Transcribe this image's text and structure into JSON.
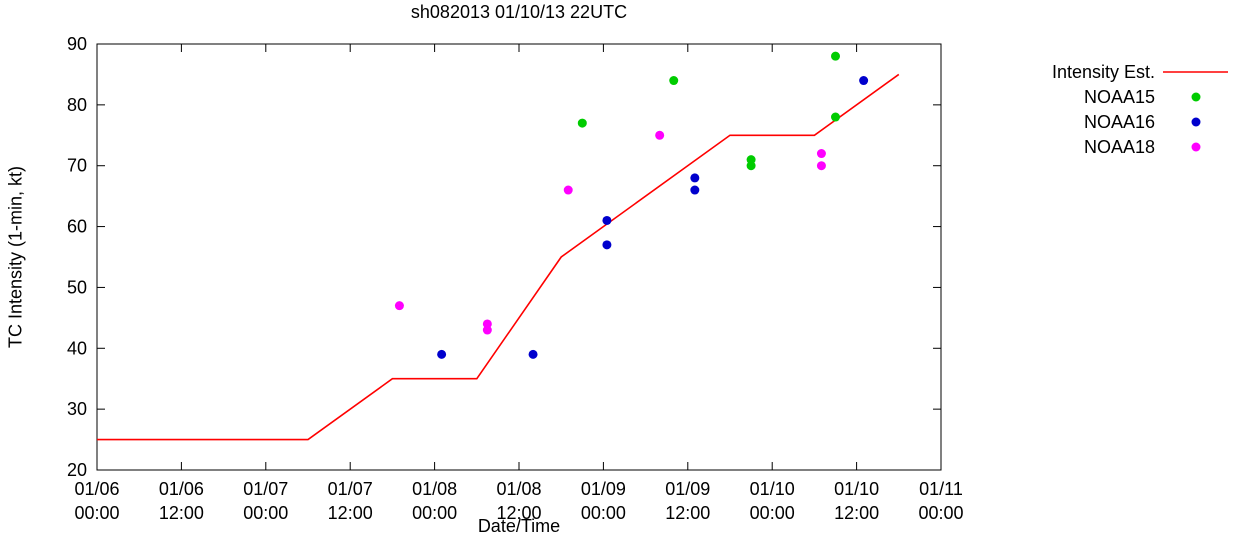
{
  "chart_data": {
    "type": "line",
    "title": "sh082013 01/10/13 22UTC",
    "xlabel": "Date/Time",
    "ylabel": "TC Intensity (1-min, kt)",
    "ylim": [
      20,
      90
    ],
    "xlim_hours": [
      0,
      120
    ],
    "grid": false,
    "legend_position": "right-outside-top",
    "y_ticks": [
      20,
      30,
      40,
      50,
      60,
      70,
      80,
      90
    ],
    "x_ticks": [
      {
        "hours": 0,
        "date": "01/06",
        "time": "00:00"
      },
      {
        "hours": 12,
        "date": "01/06",
        "time": "12:00"
      },
      {
        "hours": 24,
        "date": "01/07",
        "time": "00:00"
      },
      {
        "hours": 36,
        "date": "01/07",
        "time": "12:00"
      },
      {
        "hours": 48,
        "date": "01/08",
        "time": "00:00"
      },
      {
        "hours": 60,
        "date": "01/08",
        "time": "12:00"
      },
      {
        "hours": 72,
        "date": "01/09",
        "time": "00:00"
      },
      {
        "hours": 84,
        "date": "01/09",
        "time": "12:00"
      },
      {
        "hours": 96,
        "date": "01/10",
        "time": "00:00"
      },
      {
        "hours": 108,
        "date": "01/10",
        "time": "12:00"
      },
      {
        "hours": 120,
        "date": "01/11",
        "time": "00:00"
      }
    ],
    "series": [
      {
        "name": "Intensity Est.",
        "style": "line",
        "color": "#ff0000",
        "points": [
          [
            0,
            25
          ],
          [
            30,
            25
          ],
          [
            42,
            35
          ],
          [
            54,
            35
          ],
          [
            66,
            55
          ],
          [
            90,
            75
          ],
          [
            102,
            75
          ],
          [
            114,
            85
          ]
        ]
      },
      {
        "name": "NOAA15",
        "style": "scatter",
        "color": "#00cc00",
        "points": [
          [
            69,
            77
          ],
          [
            82,
            84
          ],
          [
            93,
            71
          ],
          [
            93,
            70
          ],
          [
            105,
            88
          ],
          [
            105,
            78
          ]
        ]
      },
      {
        "name": "NOAA16",
        "style": "scatter",
        "color": "#0000cd",
        "points": [
          [
            49,
            39
          ],
          [
            62,
            39
          ],
          [
            72.5,
            61
          ],
          [
            72.5,
            57
          ],
          [
            85,
            68
          ],
          [
            85,
            66
          ],
          [
            109,
            84
          ]
        ]
      },
      {
        "name": "NOAA18",
        "style": "scatter",
        "color": "#ff00ff",
        "points": [
          [
            43,
            47
          ],
          [
            55.5,
            44
          ],
          [
            55.5,
            43
          ],
          [
            67,
            66
          ],
          [
            80,
            75
          ],
          [
            103,
            72
          ],
          [
            103,
            70
          ]
        ]
      }
    ]
  }
}
